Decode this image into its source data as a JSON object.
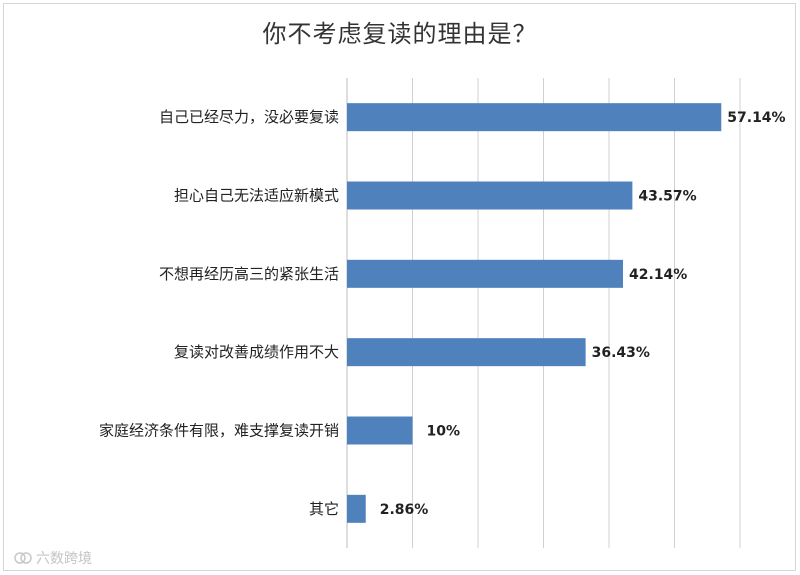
{
  "chart_data": {
    "type": "bar",
    "orientation": "horizontal",
    "title": "你不考虑复读的理由是？",
    "categories": [
      "自己已经尽力，没必要复读",
      "担心自己无法适应新模式",
      "不想再经历高三的紧张生活",
      "复读对改善成绩作用不大",
      "家庭经济条件有限，难支撑复读开销",
      "其它"
    ],
    "values": [
      57.14,
      43.57,
      42.14,
      36.43,
      10,
      2.86
    ],
    "value_labels": [
      "57.14%",
      "43.57%",
      "42.14%",
      "36.43%",
      "10%",
      "2.86%"
    ],
    "xlim": [
      0,
      60
    ],
    "grid": true,
    "legend": "none",
    "bar_color": "#4f81bd",
    "grid_color": "#d0d0d0"
  },
  "watermark": {
    "text": "六数跨境"
  }
}
